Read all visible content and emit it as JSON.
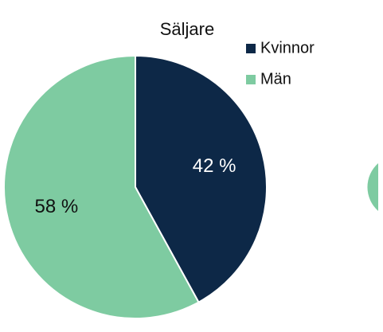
{
  "chart_data": {
    "type": "pie",
    "title": "Säljare",
    "categories": [
      "Kvinnor",
      "Män"
    ],
    "values": [
      42,
      58
    ],
    "value_labels": [
      "42 %",
      "58 %"
    ],
    "colors": [
      "#0d2847",
      "#7ecba1"
    ],
    "label_colors": [
      "#ffffff",
      "#111111"
    ]
  }
}
